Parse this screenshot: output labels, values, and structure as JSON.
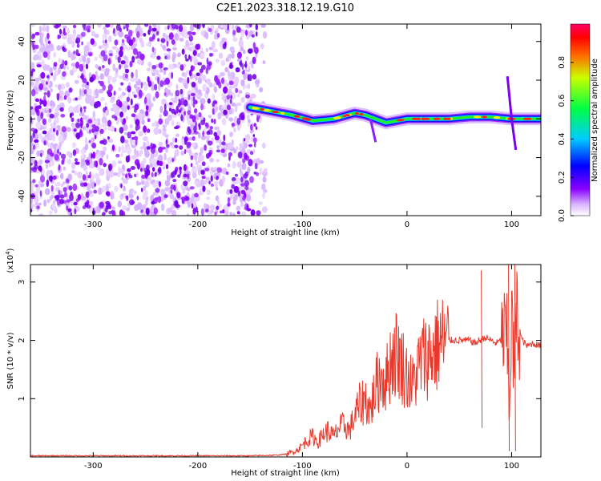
{
  "title": "C2E1.2023.318.12.19.G10",
  "chart_data": [
    {
      "type": "heatmap",
      "xlabel": "Height of straight line (km)",
      "ylabel": "Frequency (Hz)",
      "xlim": [
        -360,
        128
      ],
      "ylim": [
        -50,
        49
      ],
      "xticks": [
        -300,
        -200,
        -100,
        0,
        100
      ],
      "yticks": [
        -40,
        -20,
        0,
        20,
        40
      ],
      "noise_region_x": [
        -360,
        -135
      ],
      "signal_ridge": {
        "x": [
          -150,
          -130,
          -110,
          -90,
          -70,
          -50,
          -40,
          -30,
          -20,
          -10,
          0,
          20,
          40,
          60,
          80,
          100,
          128
        ],
        "frequency": [
          6,
          4,
          2,
          -1,
          0,
          3,
          2,
          0,
          -2,
          -1,
          0,
          0,
          0,
          1,
          1,
          0,
          0
        ]
      },
      "colorbar": {
        "label": "Normalized spectral amplitude",
        "ticks": [
          0.0,
          0.2,
          0.4,
          0.6,
          0.8
        ],
        "range": [
          0,
          1
        ],
        "colors": [
          "#ffffff",
          "#8800ff",
          "#0000ff",
          "#00ccff",
          "#00ff00",
          "#ffff00",
          "#ff0000",
          "#ff0066"
        ]
      }
    },
    {
      "type": "line",
      "xlabel": "Height of straight line (km)",
      "ylabel": "SNR (10 * v/v)",
      "scale_label": "(x10",
      "scale_exponent": "4",
      "xlim": [
        -360,
        128
      ],
      "ylim": [
        0,
        3.3
      ],
      "xticks": [
        -300,
        -200,
        -100,
        0,
        100
      ],
      "yticks": [
        1,
        2,
        3
      ],
      "series": [
        {
          "color": "#e8392c",
          "x": [
            -360,
            -300,
            -250,
            -200,
            -150,
            -125,
            -115,
            -110,
            -105,
            -100,
            -95,
            -90,
            -85,
            -80,
            -75,
            -70,
            -65,
            -60,
            -55,
            -50,
            -45,
            -40,
            -35,
            -30,
            -25,
            -20,
            -15,
            -10,
            -5,
            0,
            5,
            10,
            15,
            20,
            25,
            30,
            40,
            50,
            60,
            65,
            70,
            75,
            80,
            85,
            90,
            95,
            98,
            100,
            102,
            105,
            110,
            115,
            120,
            128
          ],
          "y": [
            0.02,
            0.02,
            0.02,
            0.02,
            0.02,
            0.03,
            0.05,
            0.08,
            0.12,
            0.2,
            0.3,
            0.35,
            0.25,
            0.4,
            0.45,
            0.35,
            0.5,
            0.55,
            0.45,
            0.7,
            0.9,
            1.0,
            0.8,
            1.2,
            1.4,
            1.3,
            1.7,
            1.8,
            1.6,
            1.4,
            1.2,
            1.5,
            1.7,
            1.75,
            1.8,
            1.95,
            2.0,
            2.0,
            2.0,
            1.95,
            2.0,
            2.05,
            2.0,
            1.95,
            2.0,
            2.1,
            1.0,
            2.5,
            1.5,
            2.4,
            2.0,
            1.9,
            1.95,
            1.9
          ]
        }
      ]
    }
  ]
}
